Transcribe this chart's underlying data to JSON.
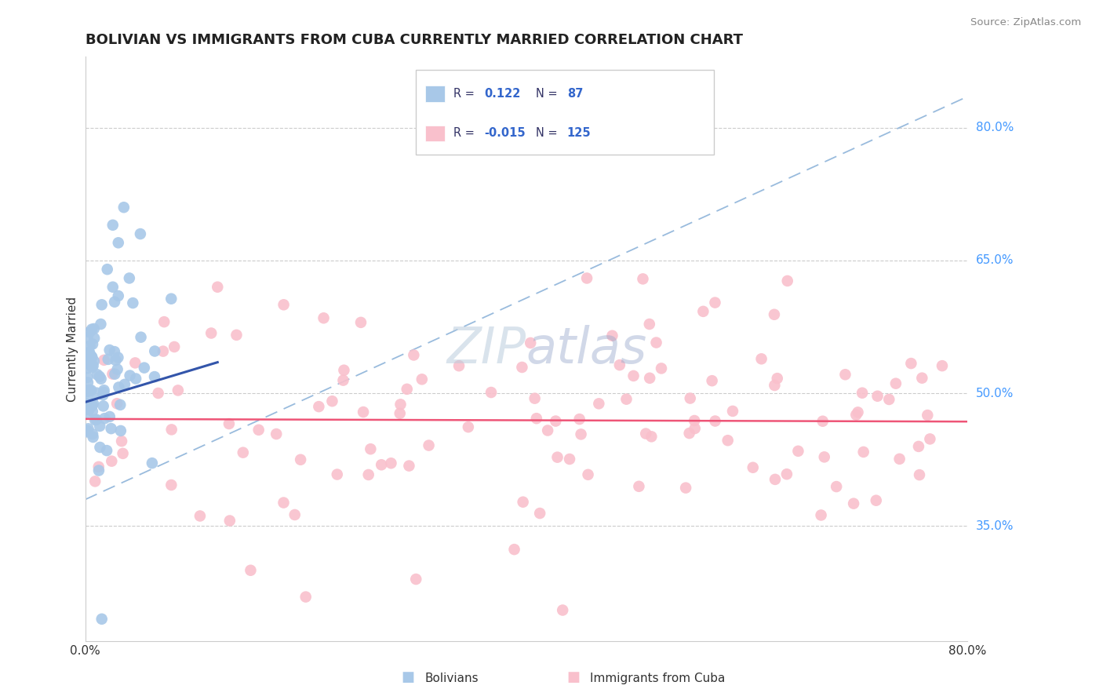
{
  "title": "BOLIVIAN VS IMMIGRANTS FROM CUBA CURRENTLY MARRIED CORRELATION CHART",
  "source": "Source: ZipAtlas.com",
  "ylabel": "Currently Married",
  "xmin": 0.0,
  "xmax": 0.8,
  "ymin": 0.22,
  "ymax": 0.88,
  "yticks": [
    0.35,
    0.5,
    0.65,
    0.8
  ],
  "ytick_labels": [
    "35.0%",
    "50.0%",
    "65.0%",
    "80.0%"
  ],
  "color_blue": "#A8C8E8",
  "color_pink": "#F9C0CC",
  "line_blue": "#3355AA",
  "line_pink": "#EE5577",
  "line_dash": "#99BBDD",
  "title_color": "#222222",
  "source_color": "#888888",
  "ytick_color": "#4499FF",
  "grid_color": "#CCCCCC",
  "watermark_color": "#BBCCDD",
  "legend_text_color": "#333366",
  "legend_val_color": "#3366CC"
}
